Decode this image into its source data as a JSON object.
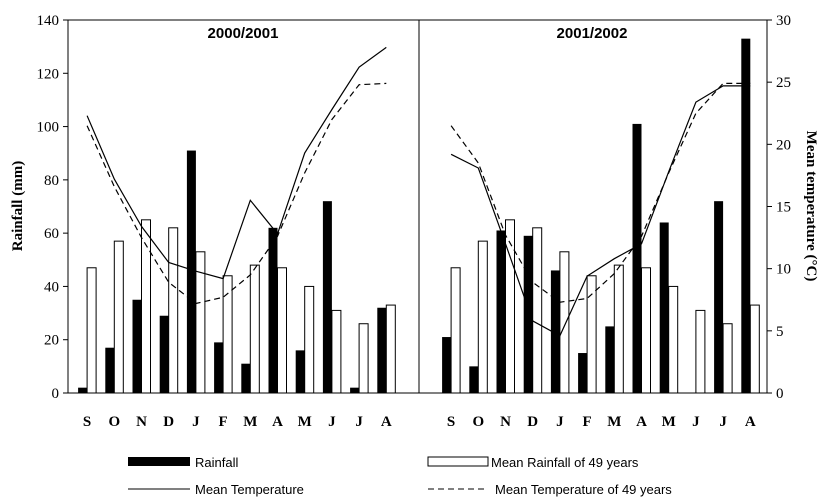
{
  "chart_data": {
    "type": "bar",
    "ylabel": "Rainfall (mm)",
    "y2label": "Mean temperature (°C)",
    "ylim": [
      0,
      140
    ],
    "y2lim": [
      0,
      30
    ],
    "yticks": [
      "0",
      "20",
      "40",
      "60",
      "80",
      "100",
      "120",
      "140"
    ],
    "y2ticks": [
      "0",
      "5",
      "10",
      "15",
      "20",
      "25",
      "30"
    ],
    "panels": [
      {
        "title": "2000/2001",
        "categories": [
          "S",
          "O",
          "N",
          "D",
          "J",
          "F",
          "M",
          "A",
          "M",
          "J",
          "J",
          "A"
        ],
        "rainfall": [
          2,
          17,
          35,
          29,
          91,
          19,
          11,
          62,
          16,
          72,
          2,
          32
        ],
        "mean_rainfall_49": [
          47,
          57,
          65,
          62,
          53,
          44,
          48,
          47,
          40,
          31,
          26,
          33
        ],
        "mean_temperature": [
          22.3,
          17.2,
          13.4,
          10.5,
          9.8,
          9.2,
          15.5,
          12.8,
          19.3,
          22.8,
          26.2,
          27.8
        ],
        "mean_temperature_49": [
          21.5,
          16.6,
          12.5,
          8.9,
          7.2,
          7.7,
          9.5,
          12.6,
          17.7,
          22.0,
          24.8,
          24.9
        ]
      },
      {
        "title": "2001/2002",
        "categories": [
          "S",
          "O",
          "N",
          "D",
          "J",
          "F",
          "M",
          "A",
          "M",
          "J",
          "J",
          "A"
        ],
        "rainfall": [
          21,
          10,
          61,
          59,
          46,
          15,
          25,
          101,
          64,
          0,
          72,
          133
        ],
        "mean_rainfall_49": [
          47,
          57,
          65,
          62,
          53,
          44,
          48,
          47,
          40,
          31,
          26,
          33
        ],
        "mean_temperature": [
          19.2,
          18.1,
          12.0,
          5.8,
          4.6,
          9.4,
          10.8,
          12.0,
          17.8,
          23.4,
          24.7,
          24.7
        ],
        "mean_temperature_49": [
          21.5,
          18.5,
          12.7,
          8.9,
          7.3,
          7.6,
          9.6,
          12.6,
          17.7,
          22.5,
          24.9,
          24.9
        ]
      }
    ],
    "legend": {
      "rainfall": "Rainfall",
      "mean_rainfall": "Mean Rainfall of 49 years",
      "mean_temperature": "Mean Temperature",
      "mean_temperature_49": "Mean Temperature of 49 years"
    },
    "colors": {
      "rainfall": "#000000",
      "mean_rainfall": "#ffffff",
      "lines": "#000000"
    }
  }
}
